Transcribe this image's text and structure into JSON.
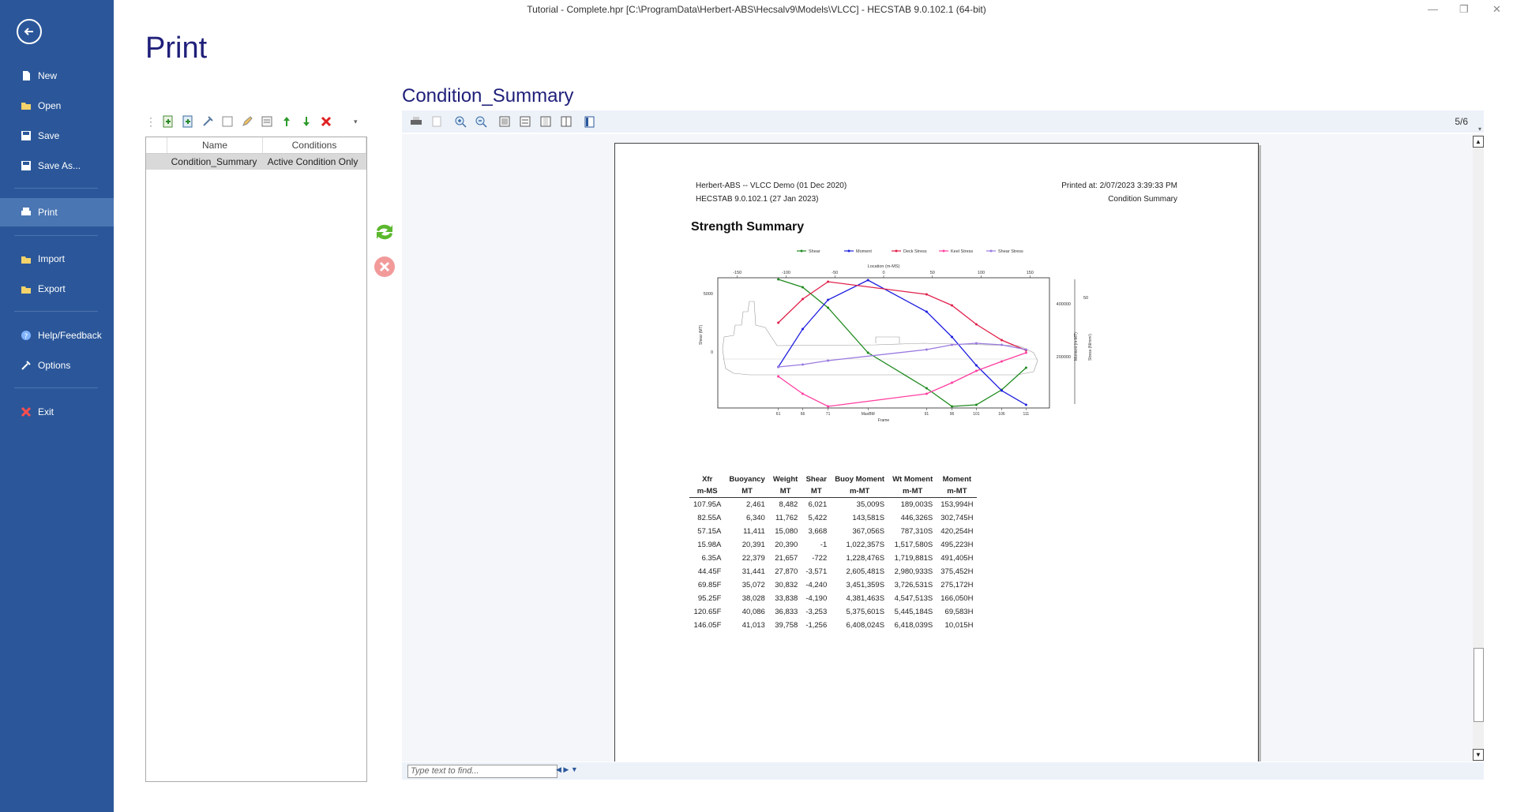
{
  "window": {
    "title": "Tutorial - Complete.hpr [C:\\ProgramData\\Herbert-ABS\\Hecsalv9\\Models\\VLCC] - HECSTAB 9.0.102.1 (64-bit)"
  },
  "sidebar": {
    "items": [
      {
        "label": "New",
        "icon": "new-file-icon"
      },
      {
        "label": "Open",
        "icon": "folder-icon"
      },
      {
        "label": "Save",
        "icon": "save-icon"
      },
      {
        "label": "Save As...",
        "icon": "save-as-icon"
      },
      {
        "label": "Print",
        "icon": "print-icon"
      },
      {
        "label": "Import",
        "icon": "import-icon"
      },
      {
        "label": "Export",
        "icon": "export-icon"
      },
      {
        "label": "Help/Feedback",
        "icon": "help-icon"
      },
      {
        "label": "Options",
        "icon": "options-icon"
      },
      {
        "label": "Exit",
        "icon": "exit-icon"
      }
    ]
  },
  "page_heading": "Print",
  "list": {
    "columns": [
      "Name",
      "Conditions"
    ],
    "rows": [
      {
        "name": "Condition_Summary",
        "conditions": "Active Condition Only"
      }
    ]
  },
  "viewer": {
    "report_title": "Condition_Summary",
    "page_indicator": "5/6",
    "find_placeholder": "Type text to find..."
  },
  "report": {
    "header_left_1": "Herbert-ABS -- VLCC Demo (01 Dec 2020)",
    "header_left_2": "HECSTAB 9.0.102.1 (27 Jan 2023)",
    "header_right_1": "Printed at: 2/07/2023 3:39:33 PM",
    "header_right_2": "Condition Summary",
    "section_title": "Strength Summary"
  },
  "chart_data": {
    "type": "line",
    "legend": [
      "Shear",
      "Moment",
      "Deck Stress",
      "Keel Stress",
      "Shear Stress"
    ],
    "colors": [
      "#1f8a1f",
      "#1f1fe0",
      "#e0204a",
      "#ff3fa0",
      "#9a7ae0"
    ],
    "top_axis_label": "Location (m-MS)",
    "top_ticks": [
      -150,
      -100,
      -50,
      0,
      50,
      100,
      150
    ],
    "bottom_axis_label": "Frame",
    "bottom_ticks": [
      "61",
      "66",
      "71",
      "MaxBM",
      "91",
      "96",
      "101",
      "106",
      "111"
    ],
    "left_axis_label": "Shear (MT)",
    "left_ticks": [
      5000,
      0
    ],
    "right_axis_label_1": "Moment (m-MT)",
    "right_ticks_1": [
      400000,
      200000
    ],
    "right_axis_label_2": "Stress (N/mm²)",
    "right_ticks_2": [
      50,
      0
    ],
    "xlim": [
      -170,
      170
    ]
  },
  "table": {
    "headers": [
      "Xfr",
      "Buoyancy",
      "Weight",
      "Shear",
      "Buoy Moment",
      "Wt Moment",
      "Moment"
    ],
    "units": [
      "m-MS",
      "MT",
      "MT",
      "MT",
      "m-MT",
      "m-MT",
      "m-MT"
    ],
    "rows": [
      [
        "107.95A",
        "2,461",
        "8,482",
        "6,021",
        "35,009S",
        "189,003S",
        "153,994H"
      ],
      [
        "82.55A",
        "6,340",
        "11,762",
        "5,422",
        "143,581S",
        "446,326S",
        "302,745H"
      ],
      [
        "57.15A",
        "11,411",
        "15,080",
        "3,668",
        "367,056S",
        "787,310S",
        "420,254H"
      ],
      [
        "15.98A",
        "20,391",
        "20,390",
        "-1",
        "1,022,357S",
        "1,517,580S",
        "495,223H"
      ],
      [
        "6.35A",
        "22,379",
        "21,657",
        "-722",
        "1,228,476S",
        "1,719,881S",
        "491,405H"
      ],
      [
        "44.45F",
        "31,441",
        "27,870",
        "-3,571",
        "2,605,481S",
        "2,980,933S",
        "375,452H"
      ],
      [
        "69.85F",
        "35,072",
        "30,832",
        "-4,240",
        "3,451,359S",
        "3,726,531S",
        "275,172H"
      ],
      [
        "95.25F",
        "38,028",
        "33,838",
        "-4,190",
        "4,381,463S",
        "4,547,513S",
        "166,050H"
      ],
      [
        "120.65F",
        "40,086",
        "36,833",
        "-3,253",
        "5,375,601S",
        "5,445,184S",
        "69,583H"
      ],
      [
        "146.05F",
        "41,013",
        "39,758",
        "-1,256",
        "6,408,024S",
        "6,418,039S",
        "10,015H"
      ]
    ]
  }
}
